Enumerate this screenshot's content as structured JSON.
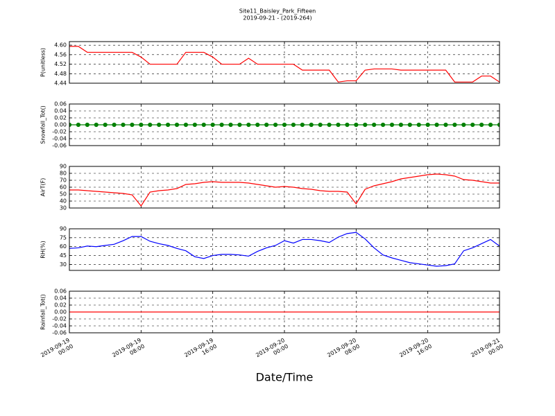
{
  "chart_data": [
    {
      "type": "line",
      "title": "Site11_Baisley_Park_Fifteen",
      "subtitle": "2019-09-21 - (2019-264)",
      "y_label": "P(unitless)",
      "color": "#ff0000",
      "grid": true,
      "ylim": [
        4.44,
        4.615
      ],
      "yticks": [
        4.44,
        4.48,
        4.52,
        4.56,
        {
          "value": 4.6,
          "label": "4.60"
        }
      ],
      "x": [
        "2019-09-19 00:00",
        "2019-09-19 01:00",
        "2019-09-19 02:00",
        "2019-09-19 03:00",
        "2019-09-19 04:00",
        "2019-09-19 05:00",
        "2019-09-19 06:00",
        "2019-09-19 07:00",
        "2019-09-19 08:00",
        "2019-09-19 09:00",
        "2019-09-19 10:00",
        "2019-09-19 11:00",
        "2019-09-19 12:00",
        "2019-09-19 13:00",
        "2019-09-19 14:00",
        "2019-09-19 15:00",
        "2019-09-19 16:00",
        "2019-09-19 17:00",
        "2019-09-19 18:00",
        "2019-09-19 19:00",
        "2019-09-19 20:00",
        "2019-09-19 21:00",
        "2019-09-19 22:00",
        "2019-09-19 23:00",
        "2019-09-20 00:00",
        "2019-09-20 01:00",
        "2019-09-20 02:00",
        "2019-09-20 03:00",
        "2019-09-20 04:00",
        "2019-09-20 05:00",
        "2019-09-20 06:00",
        "2019-09-20 07:00",
        "2019-09-20 08:00",
        "2019-09-20 09:00",
        "2019-09-20 10:00",
        "2019-09-20 11:00",
        "2019-09-20 12:00",
        "2019-09-20 13:00",
        "2019-09-20 14:00",
        "2019-09-20 15:00",
        "2019-09-20 16:00",
        "2019-09-20 17:00",
        "2019-09-20 18:00",
        "2019-09-20 19:00",
        "2019-09-20 20:00",
        "2019-09-20 21:00",
        "2019-09-20 22:00",
        "2019-09-20 23:00",
        "2019-09-21 00:00"
      ],
      "values": [
        4.595,
        4.595,
        4.57,
        4.57,
        4.57,
        4.57,
        4.57,
        4.57,
        4.55,
        4.52,
        4.52,
        4.52,
        4.52,
        4.57,
        4.57,
        4.57,
        4.55,
        4.52,
        4.52,
        4.52,
        4.545,
        4.52,
        4.52,
        4.52,
        4.52,
        4.52,
        4.495,
        4.495,
        4.495,
        4.495,
        4.445,
        4.45,
        4.45,
        4.495,
        4.5,
        4.5,
        4.5,
        4.495,
        4.495,
        4.495,
        4.495,
        4.495,
        4.495,
        4.445,
        4.445,
        4.445,
        4.47,
        4.47,
        4.445
      ]
    },
    {
      "type": "line",
      "y_label": "Snowfall_Tot()",
      "color": "#008000",
      "markers": true,
      "grid": true,
      "ylim": [
        -0.06,
        0.06
      ],
      "yticks": [
        -0.06,
        -0.04,
        -0.02,
        {
          "value": 0,
          "label": "0.00"
        },
        0.02,
        0.04,
        0.06
      ],
      "x": [
        "2019-09-19 00:00",
        "2019-09-19 01:00",
        "2019-09-19 02:00",
        "2019-09-19 03:00",
        "2019-09-19 04:00",
        "2019-09-19 05:00",
        "2019-09-19 06:00",
        "2019-09-19 07:00",
        "2019-09-19 08:00",
        "2019-09-19 09:00",
        "2019-09-19 10:00",
        "2019-09-19 11:00",
        "2019-09-19 12:00",
        "2019-09-19 13:00",
        "2019-09-19 14:00",
        "2019-09-19 15:00",
        "2019-09-19 16:00",
        "2019-09-19 17:00",
        "2019-09-19 18:00",
        "2019-09-19 19:00",
        "2019-09-19 20:00",
        "2019-09-19 21:00",
        "2019-09-19 22:00",
        "2019-09-19 23:00",
        "2019-09-20 00:00",
        "2019-09-20 01:00",
        "2019-09-20 02:00",
        "2019-09-20 03:00",
        "2019-09-20 04:00",
        "2019-09-20 05:00",
        "2019-09-20 06:00",
        "2019-09-20 07:00",
        "2019-09-20 08:00",
        "2019-09-20 09:00",
        "2019-09-20 10:00",
        "2019-09-20 11:00",
        "2019-09-20 12:00",
        "2019-09-20 13:00",
        "2019-09-20 14:00",
        "2019-09-20 15:00",
        "2019-09-20 16:00",
        "2019-09-20 17:00",
        "2019-09-20 18:00",
        "2019-09-20 19:00",
        "2019-09-20 20:00",
        "2019-09-20 21:00",
        "2019-09-20 22:00",
        "2019-09-20 23:00",
        "2019-09-21 00:00"
      ],
      "values": [
        0,
        0,
        0,
        0,
        0,
        0,
        0,
        0,
        0,
        0,
        0,
        0,
        0,
        0,
        0,
        0,
        0,
        0,
        0,
        0,
        0,
        0,
        0,
        0,
        0,
        0,
        0,
        0,
        0,
        0,
        0,
        0,
        0,
        0,
        0,
        0,
        0,
        0,
        0,
        0,
        0,
        0,
        0,
        0,
        0,
        0,
        0,
        0,
        0
      ]
    },
    {
      "type": "line",
      "y_label": "AirT(F)",
      "color": "#ff0000",
      "grid": true,
      "ylim": [
        30,
        90
      ],
      "yticks": [
        30,
        40,
        50,
        60,
        70,
        80,
        90
      ],
      "x": [
        "2019-09-19 00:00",
        "2019-09-19 01:00",
        "2019-09-19 02:00",
        "2019-09-19 03:00",
        "2019-09-19 04:00",
        "2019-09-19 05:00",
        "2019-09-19 06:00",
        "2019-09-19 07:00",
        "2019-09-19 08:00",
        "2019-09-19 09:00",
        "2019-09-19 10:00",
        "2019-09-19 11:00",
        "2019-09-19 12:00",
        "2019-09-19 13:00",
        "2019-09-19 14:00",
        "2019-09-19 15:00",
        "2019-09-19 16:00",
        "2019-09-19 17:00",
        "2019-09-19 18:00",
        "2019-09-19 19:00",
        "2019-09-19 20:00",
        "2019-09-19 21:00",
        "2019-09-19 22:00",
        "2019-09-19 23:00",
        "2019-09-20 00:00",
        "2019-09-20 01:00",
        "2019-09-20 02:00",
        "2019-09-20 03:00",
        "2019-09-20 04:00",
        "2019-09-20 05:00",
        "2019-09-20 06:00",
        "2019-09-20 07:00",
        "2019-09-20 08:00",
        "2019-09-20 09:00",
        "2019-09-20 10:00",
        "2019-09-20 11:00",
        "2019-09-20 12:00",
        "2019-09-20 13:00",
        "2019-09-20 14:00",
        "2019-09-20 15:00",
        "2019-09-20 16:00",
        "2019-09-20 17:00",
        "2019-09-20 18:00",
        "2019-09-20 19:00",
        "2019-09-20 20:00",
        "2019-09-20 21:00",
        "2019-09-20 22:00",
        "2019-09-20 23:00",
        "2019-09-21 00:00"
      ],
      "values": [
        56,
        56,
        55,
        54,
        53,
        52,
        51,
        49,
        33,
        53,
        55,
        56,
        58,
        64,
        65,
        67,
        68,
        67,
        67,
        67,
        66,
        64,
        62,
        60,
        61,
        60,
        58,
        57,
        55,
        54,
        54,
        53,
        36,
        57,
        62,
        65,
        68,
        72,
        74,
        76,
        78,
        79,
        78,
        76,
        71,
        70,
        68,
        66,
        66
      ]
    },
    {
      "type": "line",
      "y_label": "RH(%)",
      "color": "#0000ff",
      "grid": true,
      "ylim": [
        20,
        90
      ],
      "yticks": [
        30,
        45,
        60,
        75,
        90
      ],
      "x": [
        "2019-09-19 00:00",
        "2019-09-19 01:00",
        "2019-09-19 02:00",
        "2019-09-19 03:00",
        "2019-09-19 04:00",
        "2019-09-19 05:00",
        "2019-09-19 06:00",
        "2019-09-19 07:00",
        "2019-09-19 08:00",
        "2019-09-19 09:00",
        "2019-09-19 10:00",
        "2019-09-19 11:00",
        "2019-09-19 12:00",
        "2019-09-19 13:00",
        "2019-09-19 14:00",
        "2019-09-19 15:00",
        "2019-09-19 16:00",
        "2019-09-19 17:00",
        "2019-09-19 18:00",
        "2019-09-19 19:00",
        "2019-09-19 20:00",
        "2019-09-19 21:00",
        "2019-09-19 22:00",
        "2019-09-19 23:00",
        "2019-09-20 00:00",
        "2019-09-20 01:00",
        "2019-09-20 02:00",
        "2019-09-20 03:00",
        "2019-09-20 04:00",
        "2019-09-20 05:00",
        "2019-09-20 06:00",
        "2019-09-20 07:00",
        "2019-09-20 08:00",
        "2019-09-20 09:00",
        "2019-09-20 10:00",
        "2019-09-20 11:00",
        "2019-09-20 12:00",
        "2019-09-20 13:00",
        "2019-09-20 14:00",
        "2019-09-20 15:00",
        "2019-09-20 16:00",
        "2019-09-20 17:00",
        "2019-09-20 18:00",
        "2019-09-20 19:00",
        "2019-09-20 20:00",
        "2019-09-20 21:00",
        "2019-09-20 22:00",
        "2019-09-20 23:00",
        "2019-09-21 00:00"
      ],
      "values": [
        57,
        58,
        61,
        60,
        62,
        64,
        70,
        77,
        77,
        69,
        65,
        62,
        57,
        53,
        43,
        40,
        45,
        47,
        47,
        46,
        44,
        52,
        58,
        62,
        70,
        66,
        72,
        72,
        70,
        67,
        76,
        82,
        84,
        73,
        58,
        46,
        41,
        37,
        33,
        31,
        29,
        27,
        28,
        31,
        53,
        58,
        65,
        72,
        61
      ]
    },
    {
      "type": "line",
      "y_label": "Rainfall_Tot()",
      "x_label": "Date/Time",
      "color": "#ff0000",
      "grid": true,
      "ylim": [
        -0.06,
        0.06
      ],
      "yticks": [
        -0.06,
        -0.04,
        -0.02,
        {
          "value": 0,
          "label": "0.00"
        },
        0.02,
        0.04,
        0.06
      ],
      "xlim": [
        "2019-09-19 00:00",
        "2019-09-21 00:00"
      ],
      "xticks": [
        {
          "value": "2019-09-19 00:00",
          "label": "2019-09-19\n00:00"
        },
        {
          "value": "2019-09-19 08:00",
          "label": "2019-09-19\n08:00"
        },
        {
          "value": "2019-09-19 16:00",
          "label": "2019-09-19\n16:00"
        },
        {
          "value": "2019-09-20 00:00",
          "label": "2019-09-20\n00:00"
        },
        {
          "value": "2019-09-20 08:00",
          "label": "2019-09-20\n08:00"
        },
        {
          "value": "2019-09-20 16:00",
          "label": "2019-09-20\n16:00"
        },
        {
          "value": "2019-09-21 00:00",
          "label": "2019-09-21\n00:00"
        }
      ],
      "x": [
        "2019-09-19 00:00",
        "2019-09-19 01:00",
        "2019-09-19 02:00",
        "2019-09-19 03:00",
        "2019-09-19 04:00",
        "2019-09-19 05:00",
        "2019-09-19 06:00",
        "2019-09-19 07:00",
        "2019-09-19 08:00",
        "2019-09-19 09:00",
        "2019-09-19 10:00",
        "2019-09-19 11:00",
        "2019-09-19 12:00",
        "2019-09-19 13:00",
        "2019-09-19 14:00",
        "2019-09-19 15:00",
        "2019-09-19 16:00",
        "2019-09-19 17:00",
        "2019-09-19 18:00",
        "2019-09-19 19:00",
        "2019-09-19 20:00",
        "2019-09-19 21:00",
        "2019-09-19 22:00",
        "2019-09-19 23:00",
        "2019-09-20 00:00",
        "2019-09-20 01:00",
        "2019-09-20 02:00",
        "2019-09-20 03:00",
        "2019-09-20 04:00",
        "2019-09-20 05:00",
        "2019-09-20 06:00",
        "2019-09-20 07:00",
        "2019-09-20 08:00",
        "2019-09-20 09:00",
        "2019-09-20 10:00",
        "2019-09-20 11:00",
        "2019-09-20 12:00",
        "2019-09-20 13:00",
        "2019-09-20 14:00",
        "2019-09-20 15:00",
        "2019-09-20 16:00",
        "2019-09-20 17:00",
        "2019-09-20 18:00",
        "2019-09-20 19:00",
        "2019-09-20 20:00",
        "2019-09-20 21:00",
        "2019-09-20 22:00",
        "2019-09-20 23:00",
        "2019-09-21 00:00"
      ],
      "values": [
        0,
        0,
        0,
        0,
        0,
        0,
        0,
        0,
        0,
        0,
        0,
        0,
        0,
        0,
        0,
        0,
        0,
        0,
        0,
        0,
        0,
        0,
        0,
        0,
        0,
        0,
        0,
        0,
        0,
        0,
        0,
        0,
        0,
        0,
        0,
        0,
        0,
        0,
        0,
        0,
        0,
        0,
        0,
        0,
        0,
        0,
        0,
        0,
        0
      ]
    }
  ]
}
